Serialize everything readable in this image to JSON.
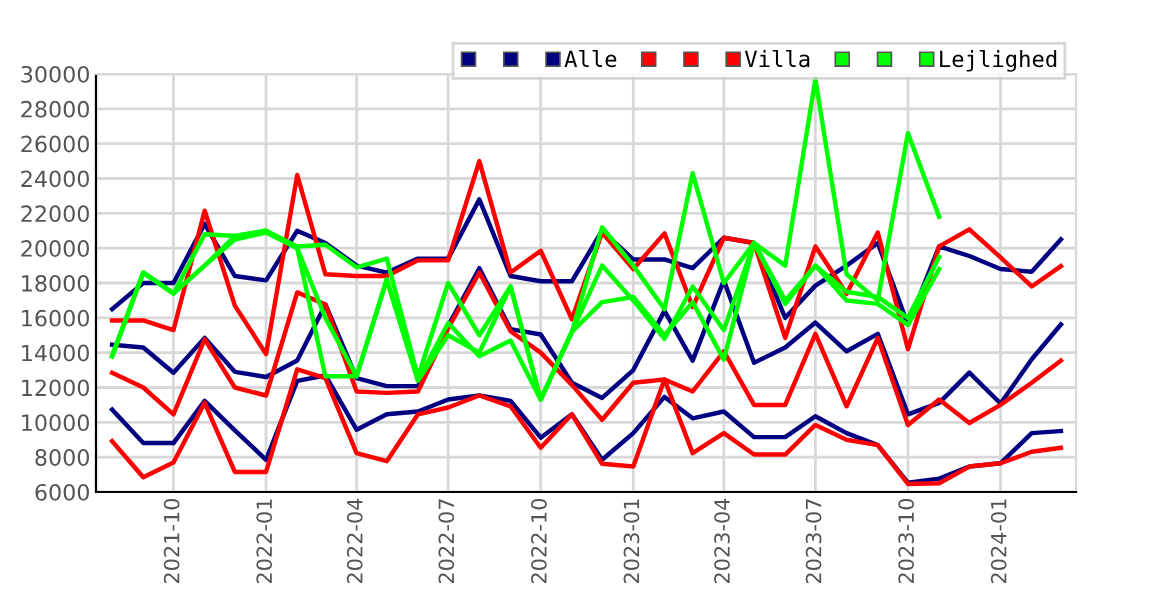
{
  "chart_data": {
    "type": "line",
    "x": [
      "2021-08",
      "2021-09",
      "2021-10",
      "2021-11",
      "2021-12",
      "2022-01",
      "2022-02",
      "2022-03",
      "2022-04",
      "2022-05",
      "2022-06",
      "2022-07",
      "2022-08",
      "2022-09",
      "2022-10",
      "2022-11",
      "2022-12",
      "2023-01",
      "2023-02",
      "2023-03",
      "2023-04",
      "2023-05",
      "2023-06",
      "2023-07",
      "2023-08",
      "2023-09",
      "2023-10",
      "2023-11",
      "2023-12",
      "2024-01",
      "2024-02",
      "2024-03"
    ],
    "series": [
      {
        "color": "#000080",
        "values": [
          16500,
          18000,
          18000,
          21400,
          18400,
          18150,
          21000,
          20300,
          19000,
          18600,
          19400,
          19400,
          22800,
          18400,
          18100,
          18100,
          21000,
          19350,
          19350,
          18850,
          20600,
          20300,
          16000,
          17850,
          19000,
          20300,
          15600,
          20100,
          19550,
          18800,
          18650,
          20500
        ]
      },
      {
        "color": "#000080",
        "values": [
          14460,
          14300,
          12850,
          14850,
          12900,
          12600,
          13550,
          16770,
          12540,
          12080,
          12080,
          15540,
          18850,
          15350,
          15040,
          12270,
          11400,
          13000,
          16400,
          13540,
          18150,
          13420,
          14300,
          15730,
          14080,
          15080,
          10460,
          11120,
          12850,
          11080,
          13620,
          15620
        ]
      },
      {
        "name": "Alle",
        "color": "#000080",
        "values": [
          10730,
          8810,
          8810,
          11230,
          9540,
          7850,
          12380,
          12690,
          9580,
          10460,
          10620,
          11310,
          11540,
          11230,
          9120,
          10460,
          7850,
          9380,
          11460,
          10230,
          10620,
          9150,
          9150,
          10350,
          9380,
          8690,
          6540,
          6770,
          7460,
          7650,
          9380,
          9500
        ]
      },
      {
        "color": "#ff0000",
        "values": [
          15850,
          15850,
          15300,
          22150,
          16700,
          13920,
          24200,
          18500,
          18400,
          18400,
          19300,
          19300,
          25000,
          18600,
          19850,
          15920,
          20900,
          18800,
          20850,
          16620,
          20600,
          20300,
          14850,
          20100,
          17380,
          20900,
          14200,
          20100,
          21080,
          19470,
          17800,
          18970
        ]
      },
      {
        "color": "#ff0000",
        "values": [
          12850,
          12000,
          10460,
          14770,
          12000,
          11540,
          17460,
          16770,
          11770,
          11690,
          11770,
          15400,
          18600,
          15230,
          14000,
          12150,
          10150,
          12270,
          12460,
          11770,
          14080,
          11000,
          11000,
          15080,
          10920,
          14850,
          9850,
          11310,
          9960,
          11000,
          12270,
          13540
        ]
      },
      {
        "name": "Villa",
        "color": "#ff0000",
        "values": [
          8920,
          6850,
          7690,
          11120,
          7150,
          7150,
          13040,
          12540,
          8230,
          7770,
          10460,
          10850,
          11540,
          10920,
          8540,
          10460,
          7620,
          7460,
          12460,
          8230,
          9380,
          8150,
          8150,
          9850,
          9000,
          8690,
          6460,
          6500,
          7460,
          7650,
          8310,
          8540
        ]
      },
      {
        "color": "#00ff00",
        "values": [
          13800,
          18600,
          17400,
          20800,
          20700,
          21000,
          20100,
          20200,
          18900,
          19400,
          12600,
          18000,
          15000,
          17800,
          11300,
          15200,
          21200,
          19000,
          16500,
          24300,
          18000,
          20300,
          19000,
          29700,
          18500,
          17000,
          26600,
          21800,
          null,
          null,
          null,
          null
        ]
      },
      {
        "color": "#00ff00",
        "values": [
          13800,
          18600,
          17400,
          19000,
          20700,
          21000,
          20000,
          16000,
          12650,
          18200,
          12400,
          15700,
          13800,
          14700,
          11300,
          15200,
          19000,
          17000,
          14800,
          17800,
          15300,
          20300,
          17000,
          19000,
          17500,
          17200,
          16000,
          19500,
          null,
          null,
          null,
          null
        ]
      },
      {
        "name": "Lejlighed",
        "color": "#00ff00",
        "values": [
          13800,
          18600,
          17400,
          19000,
          20500,
          20900,
          20000,
          12650,
          12650,
          18200,
          12400,
          15000,
          14000,
          17800,
          11300,
          15200,
          16900,
          17200,
          15000,
          16900,
          13600,
          20300,
          16800,
          19000,
          17000,
          16800,
          15600,
          18800,
          null,
          null,
          null,
          null
        ]
      }
    ],
    "xlim": [
      "2021-07-16",
      "2024-03-16"
    ],
    "xticks": [
      "2021-10",
      "2022-01",
      "2022-04",
      "2022-07",
      "2022-10",
      "2023-01",
      "2023-04",
      "2023-07",
      "2023-10",
      "2024-01"
    ],
    "ylim": [
      6000,
      30000
    ],
    "yticks": [
      6000,
      8000,
      10000,
      12000,
      14000,
      16000,
      18000,
      20000,
      22000,
      24000,
      26000,
      28000,
      30000
    ],
    "grid": true,
    "legend": "top right",
    "marker": "none",
    "line_style": "solid"
  }
}
